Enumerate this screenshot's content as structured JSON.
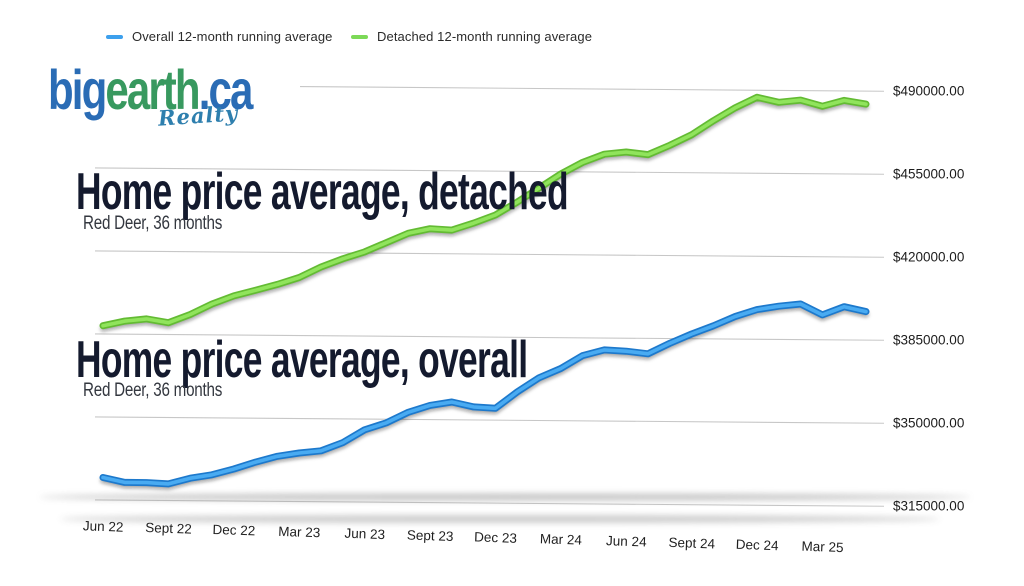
{
  "legend": {
    "items": [
      {
        "label": "Overall 12-month running average",
        "color": "#3da0ed"
      },
      {
        "label": "Detached 12-month running average",
        "color": "#7cd957"
      }
    ]
  },
  "logo": {
    "part1": "big",
    "part2": "earth",
    "part3": ".ca",
    "tagline": "Realty",
    "blue": "#2a6cb5",
    "green": "#38995f",
    "tagline_color": "#2e7fae"
  },
  "sections": [
    {
      "title": "Home price average, detached",
      "subtitle": "Red Deer, 36 months"
    },
    {
      "title": "Home price average, overall",
      "subtitle": "Red Deer, 36 months"
    }
  ],
  "chart_data": {
    "type": "line",
    "x": [
      "Jun 22",
      "Jul 22",
      "Aug 22",
      "Sep 22",
      "Oct 22",
      "Nov 22",
      "Dec 22",
      "Jan 23",
      "Feb 23",
      "Mar 23",
      "Apr 23",
      "May 23",
      "Jun 23",
      "Jul 23",
      "Aug 23",
      "Sep 23",
      "Oct 23",
      "Nov 23",
      "Dec 23",
      "Jan 24",
      "Feb 24",
      "Mar 24",
      "Apr 24",
      "May 24",
      "Jun 24",
      "Jul 24",
      "Aug 24",
      "Sep 24",
      "Oct 24",
      "Nov 24",
      "Dec 24",
      "Jan 25",
      "Feb 25",
      "Mar 25",
      "Apr 25",
      "May 25"
    ],
    "x_tick_labels": [
      "Jun 22",
      "Sept 22",
      "Dec 22",
      "Mar 23",
      "Jun 23",
      "Sept 23",
      "Dec 23",
      "Mar 24",
      "Jun 24",
      "Sept 24",
      "Dec 24",
      "Mar 25"
    ],
    "series": [
      {
        "name": "Overall 12-month running average",
        "edge_color": "#1d79cc",
        "core_color": "#49abf2",
        "values": [
          324500,
          322500,
          322500,
          322000,
          324500,
          326000,
          328500,
          331500,
          334000,
          335500,
          336500,
          340000,
          345500,
          348500,
          353000,
          356000,
          357500,
          355500,
          355000,
          362000,
          368000,
          372000,
          377500,
          380000,
          379500,
          378500,
          383000,
          387000,
          390500,
          394500,
          397500,
          399000,
          400000,
          395500,
          399000,
          397000
        ]
      },
      {
        "name": "Detached 12-month running average",
        "edge_color": "#63bb33",
        "core_color": "#90e45c",
        "values": [
          388500,
          390500,
          391500,
          390000,
          393500,
          398000,
          401500,
          404000,
          406500,
          409500,
          414000,
          417500,
          420500,
          424500,
          428500,
          430500,
          430000,
          433000,
          436500,
          442000,
          448000,
          454000,
          459000,
          462500,
          463500,
          462500,
          466500,
          471000,
          477000,
          482500,
          487000,
          485000,
          486000,
          483500,
          486000,
          484500
        ]
      }
    ],
    "y_ticks": [
      {
        "value": 315000,
        "label": "$315000.00"
      },
      {
        "value": 350000,
        "label": "$350000.00"
      },
      {
        "value": 385000,
        "label": "$385000.00"
      },
      {
        "value": 420000,
        "label": "$420000.00"
      },
      {
        "value": 455000,
        "label": "$455000.00"
      },
      {
        "value": 490000,
        "label": "$490000.00"
      }
    ],
    "ylim": [
      315000,
      490000
    ],
    "grid": true,
    "legend_position": "top",
    "title": "Home price average, Red Deer, 36 months",
    "xlabel": "",
    "ylabel": ""
  }
}
